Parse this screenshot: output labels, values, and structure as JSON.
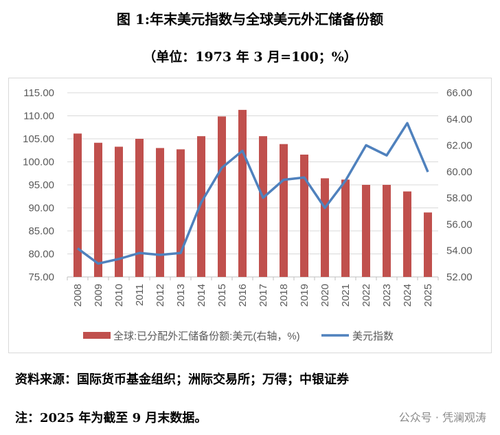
{
  "title": "图 1:年末美元指数与全球美元外汇储备份额",
  "subtitle": "（单位：1973 年 3 月=100；%）",
  "chart_data": {
    "type": "bar+line",
    "categories": [
      "2008",
      "2009",
      "2010",
      "2011",
      "2012",
      "2013",
      "2014",
      "2015",
      "2016",
      "2017",
      "2018",
      "2019",
      "2020",
      "2021",
      "2022",
      "2023",
      "2024",
      "2025"
    ],
    "series": [
      {
        "name": "全球:已分配外汇储备份额:美元(右轴，%)",
        "type": "bar",
        "axis": "right",
        "color": "#c0504d",
        "values": [
          62.9,
          62.2,
          61.9,
          62.5,
          61.8,
          61.7,
          62.7,
          64.2,
          64.7,
          62.7,
          62.1,
          61.3,
          59.5,
          59.4,
          59.0,
          59.0,
          58.5,
          56.9
        ]
      },
      {
        "name": "美元指数",
        "type": "line",
        "axis": "left",
        "color": "#4f81bd",
        "values": [
          81.2,
          77.9,
          78.9,
          80.2,
          79.8,
          80.2,
          91.2,
          98.7,
          102.4,
          92.2,
          96.1,
          96.6,
          90.0,
          95.9,
          103.6,
          101.4,
          108.4,
          97.8
        ]
      }
    ],
    "left_ticks": [
      "75.00",
      "80.00",
      "85.00",
      "90.00",
      "95.00",
      "100.00",
      "105.00",
      "110.00",
      "115.00"
    ],
    "right_ticks": [
      "52.00",
      "54.00",
      "56.00",
      "58.00",
      "60.00",
      "62.00",
      "64.00",
      "66.00"
    ],
    "ylim_left": [
      75,
      115
    ],
    "ylim_right": [
      52,
      66
    ],
    "grid": true,
    "legend_position": "bottom"
  },
  "source": "资料来源：国际货币基金组织；洲际交易所；万得；中银证券",
  "note": "注：2025 年为截至 9 月末数据。",
  "watermark": "公众号 · 凭澜观涛"
}
